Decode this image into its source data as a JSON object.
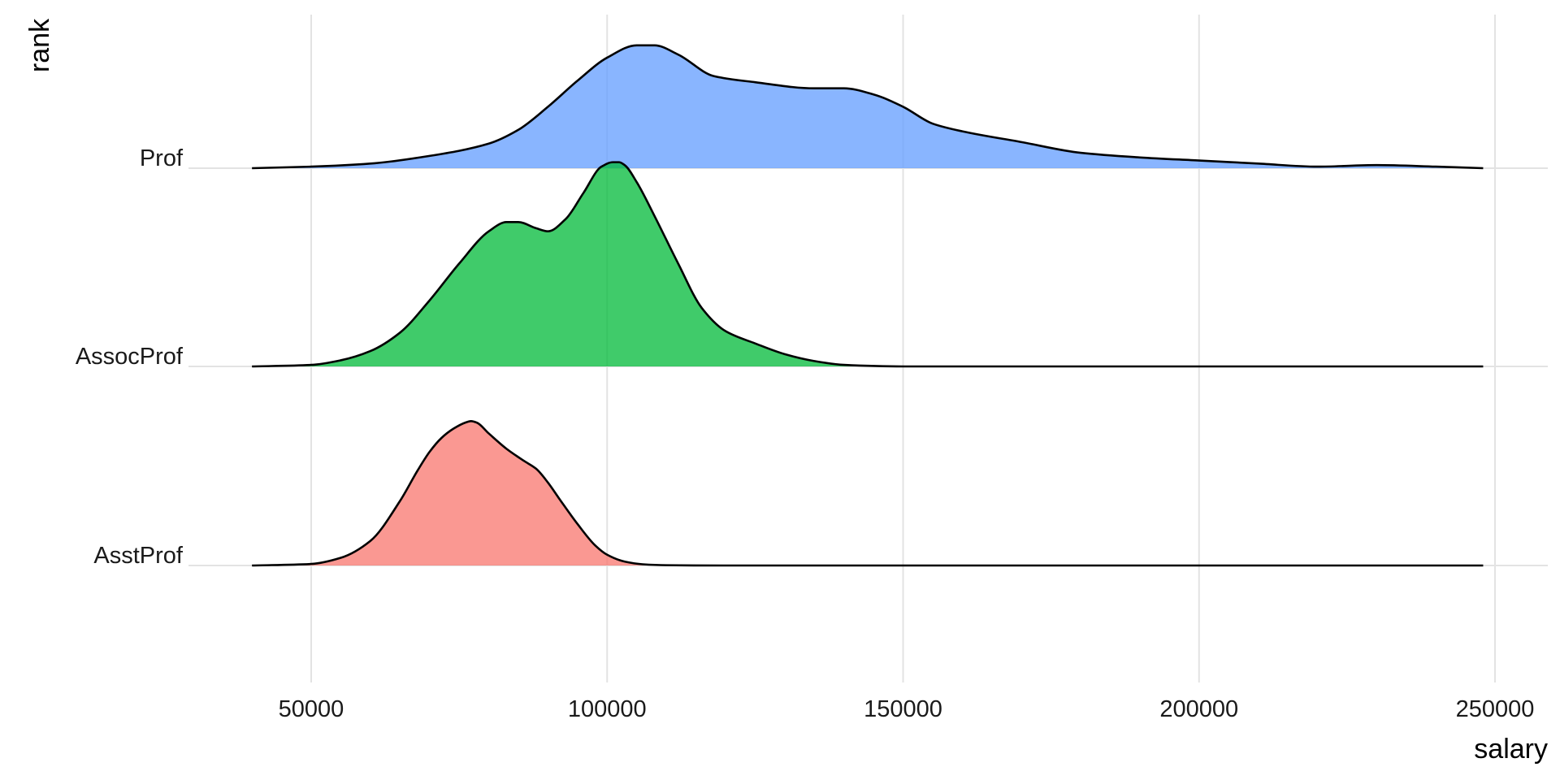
{
  "chart_data": {
    "type": "area",
    "subtype": "ridgeline-density",
    "xlabel": "salary",
    "ylabel": "rank",
    "xlim": [
      31000,
      260000
    ],
    "x_ticks": [
      50000,
      100000,
      150000,
      200000,
      250000
    ],
    "x_tick_labels": [
      "50000",
      "100000",
      "150000",
      "200000",
      "250000"
    ],
    "grid": true,
    "legend": "none",
    "categories": [
      "AsstProf",
      "AssocProf",
      "Prof"
    ],
    "fill_opacity": 0.75,
    "series": [
      {
        "name": "AsstProf",
        "color": "#F8766D",
        "x": [
          40000,
          50000,
          55000,
          60000,
          65000,
          68000,
          70000,
          72000,
          74000,
          76000,
          77000,
          78000,
          80000,
          83000,
          86000,
          88000,
          90000,
          92000,
          95000,
          98000,
          100000,
          103000,
          106000,
          110000,
          120000,
          150000,
          200000,
          248000
        ],
        "y": [
          0,
          0.01,
          0.05,
          0.16,
          0.42,
          0.62,
          0.74,
          0.83,
          0.89,
          0.93,
          0.94,
          0.93,
          0.86,
          0.76,
          0.68,
          0.63,
          0.54,
          0.43,
          0.27,
          0.13,
          0.07,
          0.025,
          0.008,
          0.002,
          0,
          0,
          0,
          0
        ]
      },
      {
        "name": "AssocProf",
        "color": "#00BA38",
        "x": [
          40000,
          50000,
          55000,
          60000,
          65000,
          70000,
          75000,
          80000,
          83000,
          85000,
          88000,
          90000,
          93000,
          96000,
          99000,
          101000,
          102000,
          103000,
          105000,
          108000,
          112000,
          116000,
          120000,
          125000,
          130000,
          135000,
          140000,
          150000,
          200000,
          248000
        ],
        "y": [
          0,
          0.01,
          0.04,
          0.1,
          0.22,
          0.43,
          0.67,
          0.88,
          0.94,
          0.94,
          0.9,
          0.88,
          0.96,
          1.13,
          1.3,
          1.33,
          1.33,
          1.31,
          1.2,
          0.98,
          0.67,
          0.38,
          0.23,
          0.15,
          0.08,
          0.035,
          0.01,
          0,
          0,
          0
        ]
      },
      {
        "name": "Prof",
        "color": "#619CFF",
        "x": [
          40000,
          50000,
          60000,
          70000,
          80000,
          85000,
          90000,
          95000,
          100000,
          105000,
          108000,
          112000,
          118000,
          125000,
          135000,
          140000,
          145000,
          150000,
          155000,
          160000,
          170000,
          180000,
          190000,
          200000,
          210000,
          220000,
          230000,
          240000,
          248000
        ],
        "y": [
          0,
          0.01,
          0.03,
          0.08,
          0.16,
          0.25,
          0.4,
          0.57,
          0.72,
          0.8,
          0.8,
          0.74,
          0.6,
          0.56,
          0.52,
          0.52,
          0.48,
          0.4,
          0.29,
          0.24,
          0.17,
          0.1,
          0.07,
          0.05,
          0.03,
          0.01,
          0.02,
          0.01,
          0
        ]
      }
    ]
  }
}
